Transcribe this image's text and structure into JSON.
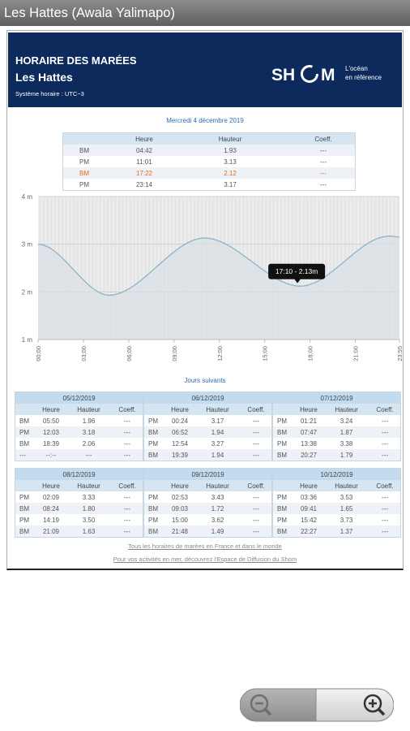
{
  "app_bar": {
    "title": "Les Hattes (Awala Yalimapo)"
  },
  "header": {
    "title": "HORAIRE DES MARÉES",
    "location": "Les Hattes",
    "time_system": "Système horaire : UTC−3",
    "logo_left": "SH",
    "logo_right": "M",
    "tagline": [
      "L'océan",
      "en référence"
    ]
  },
  "today": {
    "date": "Mercredi 4 décembre 2019",
    "columns": [
      "Heure",
      "Hauteur",
      "Coeff."
    ],
    "rows": [
      [
        "BM",
        "04:42",
        "1.93",
        "---"
      ],
      [
        "PM",
        "11:01",
        "3.13",
        "---"
      ],
      [
        "BM",
        "17:22",
        "2.12",
        "---"
      ],
      [
        "PM",
        "23:14",
        "3.17",
        "---"
      ]
    ],
    "highlight_row": 2,
    "highlight_color": "#e06a1b"
  },
  "chart_data": {
    "type": "line",
    "x": [
      0,
      4.7,
      11.0167,
      17.3667,
      23.2333,
      23.9167
    ],
    "series": [
      {
        "name": "Hauteur",
        "color": "#8fb3c9",
        "values": [
          3.0,
          1.93,
          3.13,
          2.12,
          3.17,
          3.15
        ]
      }
    ],
    "xlim": [
      0,
      23.9167
    ],
    "ylim": [
      1,
      4
    ],
    "xticks": [
      {
        "value": 0,
        "label": "00:00"
      },
      {
        "value": 3,
        "label": "03:00"
      },
      {
        "value": 6,
        "label": "06:00"
      },
      {
        "value": 9,
        "label": "09:00"
      },
      {
        "value": 12,
        "label": "12:00"
      },
      {
        "value": 15,
        "label": "15:00"
      },
      {
        "value": 18,
        "label": "18:00"
      },
      {
        "value": 21,
        "label": "21:00"
      },
      {
        "value": 23.9167,
        "label": "23:55"
      }
    ],
    "yticks": [
      {
        "value": 1,
        "label": "1 m"
      },
      {
        "value": 2,
        "label": "2 m"
      },
      {
        "value": 3,
        "label": "3 m"
      },
      {
        "value": 4,
        "label": "4 m"
      }
    ],
    "grid": true,
    "annotation": {
      "text": "17:10 - 2.13m",
      "x": 17.1667,
      "y": 2.13
    }
  },
  "next_days": {
    "title": "Jours suivants",
    "columns": [
      "Heure",
      "Hauteur",
      "Coeff."
    ],
    "days": [
      {
        "date": "05/12/2019",
        "rows": [
          [
            "BM",
            "05:50",
            "1.96",
            "---"
          ],
          [
            "PM",
            "12:03",
            "3.18",
            "---"
          ],
          [
            "BM",
            "18:39",
            "2.06",
            "---"
          ],
          [
            "---",
            "--:--",
            "---",
            "---"
          ]
        ]
      },
      {
        "date": "06/12/2019",
        "rows": [
          [
            "PM",
            "00:24",
            "3.17",
            "---"
          ],
          [
            "BM",
            "06:52",
            "1.94",
            "---"
          ],
          [
            "PM",
            "12:54",
            "3.27",
            "---"
          ],
          [
            "BM",
            "19:39",
            "1.94",
            "---"
          ]
        ]
      },
      {
        "date": "07/12/2019",
        "rows": [
          [
            "PM",
            "01:21",
            "3.24",
            "---"
          ],
          [
            "BM",
            "07:47",
            "1.87",
            "---"
          ],
          [
            "PM",
            "13:38",
            "3.38",
            "---"
          ],
          [
            "BM",
            "20:27",
            "1.79",
            "---"
          ]
        ]
      },
      {
        "date": "08/12/2019",
        "rows": [
          [
            "PM",
            "02:09",
            "3.33",
            "---"
          ],
          [
            "BM",
            "08:24",
            "1.80",
            "---"
          ],
          [
            "PM",
            "14:19",
            "3.50",
            "---"
          ],
          [
            "BM",
            "21:09",
            "1.63",
            "---"
          ]
        ]
      },
      {
        "date": "09/12/2019",
        "rows": [
          [
            "PM",
            "02:53",
            "3.43",
            "---"
          ],
          [
            "BM",
            "09:03",
            "1.72",
            "---"
          ],
          [
            "PM",
            "15:00",
            "3.62",
            "---"
          ],
          [
            "BM",
            "21:48",
            "1.49",
            "---"
          ]
        ]
      },
      {
        "date": "10/12/2019",
        "rows": [
          [
            "PM",
            "03:36",
            "3.53",
            "---"
          ],
          [
            "BM",
            "09:41",
            "1.65",
            "---"
          ],
          [
            "PM",
            "15:42",
            "3.73",
            "---"
          ],
          [
            "BM",
            "22:27",
            "1.37",
            "---"
          ]
        ]
      }
    ]
  },
  "links": [
    "Tous les horaires de marées en France et dans le monde",
    "Pour vos activités en mer, découvrez l'Espace de Diffusion du Shom"
  ]
}
